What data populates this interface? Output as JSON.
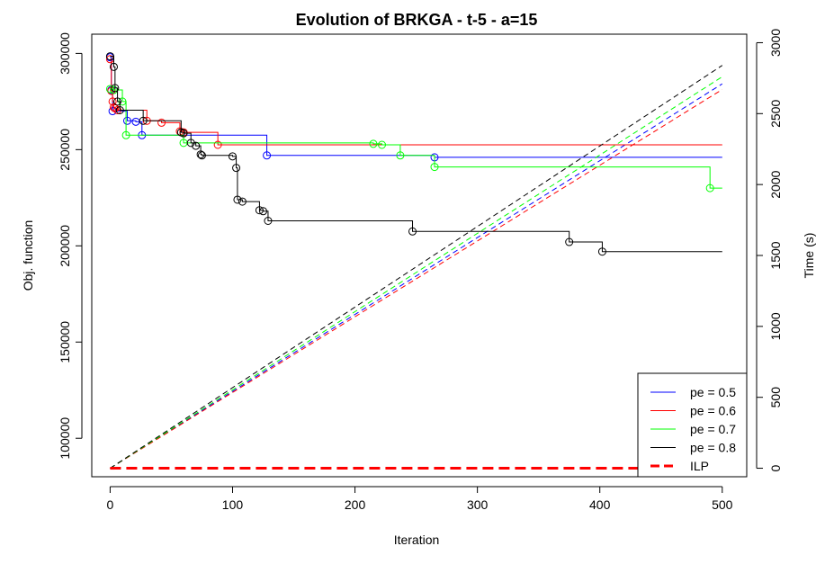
{
  "chart_data": {
    "type": "line",
    "title": "Evolution of BRKGA - t-5 - a=15",
    "xlabel": "Iteration",
    "ylabel_left": "Obj. function",
    "ylabel_right": "Time (s)",
    "xlim": [
      -15,
      520
    ],
    "ylim_left": [
      80000,
      310000
    ],
    "ylim_right": [
      -60,
      3060
    ],
    "x_ticks": [
      0,
      100,
      200,
      300,
      400,
      500
    ],
    "y_left_ticks": [
      100000,
      150000,
      200000,
      250000,
      300000
    ],
    "y_right_ticks": [
      0,
      500,
      1000,
      1500,
      2000,
      2500,
      3000
    ],
    "legend_position": "bottom-right",
    "series": [
      {
        "name": "pe = 0.5",
        "color": "#0000ff",
        "objective": [
          [
            0,
            298000
          ],
          [
            1,
            281000
          ],
          [
            2,
            270000
          ],
          [
            3,
            270000
          ],
          [
            5,
            270000
          ],
          [
            14,
            265000
          ],
          [
            21,
            264500
          ],
          [
            26,
            257500
          ],
          [
            128,
            247000
          ],
          [
            265,
            246000
          ],
          [
            500,
            246000
          ]
        ],
        "improvements": [
          [
            0,
            298000
          ],
          [
            1,
            281000
          ],
          [
            2,
            270000
          ],
          [
            14,
            265000
          ],
          [
            21,
            264500
          ],
          [
            26,
            257500
          ],
          [
            128,
            247000
          ],
          [
            265,
            246000
          ]
        ],
        "time": [
          [
            0,
            0
          ],
          [
            500,
            2710
          ]
        ]
      },
      {
        "name": "pe = 0.6",
        "color": "#ff0000",
        "objective": [
          [
            0,
            297000
          ],
          [
            1,
            280500
          ],
          [
            2,
            275000
          ],
          [
            3,
            272000
          ],
          [
            4,
            271500
          ],
          [
            6,
            270500
          ],
          [
            30,
            265000
          ],
          [
            42,
            264000
          ],
          [
            57,
            259500
          ],
          [
            60,
            259000
          ],
          [
            88,
            252500
          ],
          [
            500,
            252500
          ]
        ],
        "improvements": [
          [
            0,
            297000
          ],
          [
            1,
            280500
          ],
          [
            2,
            275000
          ],
          [
            3,
            272000
          ],
          [
            4,
            271500
          ],
          [
            6,
            270500
          ],
          [
            30,
            265000
          ],
          [
            42,
            264000
          ],
          [
            57,
            259500
          ],
          [
            60,
            259000
          ],
          [
            88,
            252500
          ]
        ],
        "time": [
          [
            0,
            0
          ],
          [
            500,
            2670
          ]
        ]
      },
      {
        "name": "pe = 0.7",
        "color": "#00ff00",
        "objective": [
          [
            0,
            281500
          ],
          [
            3,
            281000
          ],
          [
            10,
            275000
          ],
          [
            13,
            257500
          ],
          [
            60,
            253500
          ],
          [
            215,
            253000
          ],
          [
            222,
            252500
          ],
          [
            237,
            247000
          ],
          [
            265,
            241000
          ],
          [
            490,
            230000
          ],
          [
            500,
            230000
          ]
        ],
        "improvements": [
          [
            0,
            281500
          ],
          [
            3,
            281000
          ],
          [
            10,
            275000
          ],
          [
            13,
            257500
          ],
          [
            60,
            253500
          ],
          [
            215,
            253000
          ],
          [
            222,
            252500
          ],
          [
            237,
            247000
          ],
          [
            265,
            241000
          ],
          [
            490,
            230000
          ]
        ],
        "time": [
          [
            0,
            0
          ],
          [
            500,
            2760
          ]
        ]
      },
      {
        "name": "pe = 0.8",
        "color": "#000000",
        "objective": [
          [
            0,
            298500
          ],
          [
            3,
            293000
          ],
          [
            4,
            282000
          ],
          [
            6,
            275000
          ],
          [
            8,
            270500
          ],
          [
            27,
            265000
          ],
          [
            58,
            259000
          ],
          [
            60,
            258500
          ],
          [
            66,
            253500
          ],
          [
            70,
            252000
          ],
          [
            74,
            247500
          ],
          [
            75,
            247000
          ],
          [
            100,
            246500
          ],
          [
            103,
            240500
          ],
          [
            104,
            224000
          ],
          [
            108,
            223000
          ],
          [
            122,
            218500
          ],
          [
            125,
            218000
          ],
          [
            129,
            213000
          ],
          [
            247,
            207500
          ],
          [
            375,
            202000
          ],
          [
            402,
            197000
          ],
          [
            500,
            197000
          ]
        ],
        "improvements": [
          [
            0,
            298500
          ],
          [
            3,
            293000
          ],
          [
            4,
            282000
          ],
          [
            6,
            275000
          ],
          [
            8,
            270500
          ],
          [
            27,
            265000
          ],
          [
            58,
            259000
          ],
          [
            60,
            258500
          ],
          [
            66,
            253500
          ],
          [
            70,
            252000
          ],
          [
            74,
            247500
          ],
          [
            75,
            247000
          ],
          [
            100,
            246500
          ],
          [
            103,
            240500
          ],
          [
            104,
            224000
          ],
          [
            108,
            223000
          ],
          [
            122,
            218500
          ],
          [
            125,
            218000
          ],
          [
            129,
            213000
          ],
          [
            247,
            207500
          ],
          [
            375,
            202000
          ],
          [
            402,
            197000
          ]
        ],
        "time": [
          [
            0,
            0
          ],
          [
            500,
            2840
          ]
        ]
      },
      {
        "name": "ILP",
        "color": "#ff0000",
        "time": [
          [
            0,
            0
          ],
          [
            500,
            0
          ]
        ]
      }
    ]
  }
}
